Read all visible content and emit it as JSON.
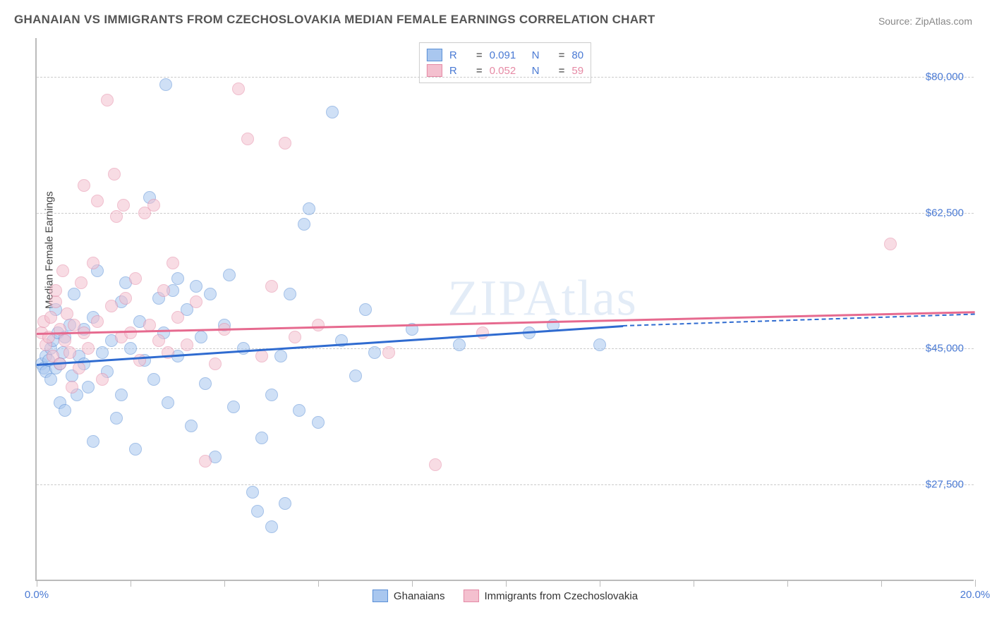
{
  "title": "GHANAIAN VS IMMIGRANTS FROM CZECHOSLOVAKIA MEDIAN FEMALE EARNINGS CORRELATION CHART",
  "source": "Source: ZipAtlas.com",
  "watermark": "ZIPAtlas",
  "chart": {
    "type": "scatter",
    "ylabel": "Median Female Earnings",
    "xlim": [
      0,
      20
    ],
    "ylim": [
      15000,
      85000
    ],
    "xtick_labels": {
      "0": "0.0%",
      "20": "20.0%"
    },
    "xtick_positions": [
      0,
      2,
      4,
      6,
      8,
      10,
      12,
      14,
      16,
      18,
      20
    ],
    "ytick_positions": [
      27500,
      45000,
      62500,
      80000
    ],
    "ytick_labels": {
      "27500": "$27,500",
      "45000": "$45,000",
      "62500": "$62,500",
      "80000": "$80,000"
    },
    "grid_color": "#cccccc",
    "axis_color": "#bbbbbb",
    "background_color": "#ffffff",
    "label_fontsize": 15,
    "title_fontsize": 17,
    "marker_radius": 9,
    "marker_opacity": 0.55,
    "series": [
      {
        "name": "Ghanaians",
        "color_fill": "#a9c7ef",
        "color_stroke": "#5a8fd6",
        "R": "0.091",
        "N": "80",
        "trend": {
          "x1": 0,
          "y1": 43000,
          "x2": 12.5,
          "y2": 48000,
          "x2_dash": 20,
          "y2_dash": 49500,
          "color": "#2f6bd0"
        },
        "points": [
          [
            0.1,
            43000
          ],
          [
            0.15,
            42500
          ],
          [
            0.2,
            44000
          ],
          [
            0.2,
            42000
          ],
          [
            0.25,
            43500
          ],
          [
            0.3,
            41000
          ],
          [
            0.3,
            45000
          ],
          [
            0.35,
            46000
          ],
          [
            0.4,
            42500
          ],
          [
            0.4,
            50000
          ],
          [
            0.45,
            47000
          ],
          [
            0.5,
            43000
          ],
          [
            0.5,
            38000
          ],
          [
            0.55,
            44500
          ],
          [
            0.6,
            37000
          ],
          [
            0.6,
            46500
          ],
          [
            0.7,
            48000
          ],
          [
            0.75,
            41500
          ],
          [
            0.8,
            52000
          ],
          [
            0.85,
            39000
          ],
          [
            0.9,
            44000
          ],
          [
            1.0,
            47500
          ],
          [
            1.0,
            43000
          ],
          [
            1.1,
            40000
          ],
          [
            1.2,
            33000
          ],
          [
            1.2,
            49000
          ],
          [
            1.3,
            55000
          ],
          [
            1.4,
            44500
          ],
          [
            1.5,
            42000
          ],
          [
            1.6,
            46000
          ],
          [
            1.7,
            36000
          ],
          [
            1.8,
            51000
          ],
          [
            1.8,
            39000
          ],
          [
            1.9,
            53500
          ],
          [
            2.0,
            45000
          ],
          [
            2.1,
            32000
          ],
          [
            2.2,
            48500
          ],
          [
            2.3,
            43500
          ],
          [
            2.4,
            64500
          ],
          [
            2.5,
            41000
          ],
          [
            2.6,
            51500
          ],
          [
            2.7,
            47000
          ],
          [
            2.75,
            79000
          ],
          [
            2.8,
            38000
          ],
          [
            2.9,
            52500
          ],
          [
            3.0,
            44000
          ],
          [
            3.0,
            54000
          ],
          [
            3.2,
            50000
          ],
          [
            3.3,
            35000
          ],
          [
            3.4,
            53000
          ],
          [
            3.5,
            46500
          ],
          [
            3.6,
            40500
          ],
          [
            3.7,
            52000
          ],
          [
            3.8,
            31000
          ],
          [
            4.0,
            48000
          ],
          [
            4.1,
            54500
          ],
          [
            4.2,
            37500
          ],
          [
            4.4,
            45000
          ],
          [
            4.6,
            26500
          ],
          [
            4.8,
            33500
          ],
          [
            5.0,
            39000
          ],
          [
            5.0,
            22000
          ],
          [
            5.2,
            44000
          ],
          [
            5.3,
            25000
          ],
          [
            5.4,
            52000
          ],
          [
            5.6,
            37000
          ],
          [
            5.7,
            61000
          ],
          [
            5.8,
            63000
          ],
          [
            6.0,
            35500
          ],
          [
            6.3,
            75500
          ],
          [
            6.5,
            46000
          ],
          [
            6.8,
            41500
          ],
          [
            7.0,
            50000
          ],
          [
            7.2,
            44500
          ],
          [
            8.0,
            47500
          ],
          [
            9.0,
            45500
          ],
          [
            10.5,
            47000
          ],
          [
            11.0,
            48000
          ],
          [
            12.0,
            45500
          ],
          [
            4.7,
            24000
          ]
        ]
      },
      {
        "name": "Immigrants from Czechoslovakia",
        "color_fill": "#f4c0cf",
        "color_stroke": "#e48aa6",
        "R": "0.052",
        "N": "59",
        "trend": {
          "x1": 0,
          "y1": 47000,
          "x2": 20,
          "y2": 49800,
          "color": "#e66a8f"
        },
        "points": [
          [
            0.1,
            47000
          ],
          [
            0.15,
            48500
          ],
          [
            0.2,
            45500
          ],
          [
            0.25,
            46500
          ],
          [
            0.3,
            49000
          ],
          [
            0.35,
            44000
          ],
          [
            0.4,
            51000
          ],
          [
            0.4,
            52500
          ],
          [
            0.5,
            47500
          ],
          [
            0.5,
            43000
          ],
          [
            0.55,
            55000
          ],
          [
            0.6,
            46000
          ],
          [
            0.65,
            49500
          ],
          [
            0.7,
            44500
          ],
          [
            0.75,
            40000
          ],
          [
            0.8,
            48000
          ],
          [
            0.9,
            42500
          ],
          [
            0.95,
            53500
          ],
          [
            1.0,
            47000
          ],
          [
            1.0,
            66000
          ],
          [
            1.1,
            45000
          ],
          [
            1.2,
            56000
          ],
          [
            1.3,
            64000
          ],
          [
            1.3,
            48500
          ],
          [
            1.4,
            41000
          ],
          [
            1.5,
            77000
          ],
          [
            1.6,
            50500
          ],
          [
            1.65,
            67500
          ],
          [
            1.7,
            62000
          ],
          [
            1.8,
            46500
          ],
          [
            1.85,
            63500
          ],
          [
            1.9,
            51500
          ],
          [
            2.0,
            47000
          ],
          [
            2.1,
            54000
          ],
          [
            2.2,
            43500
          ],
          [
            2.3,
            62500
          ],
          [
            2.4,
            48000
          ],
          [
            2.5,
            63500
          ],
          [
            2.6,
            46000
          ],
          [
            2.7,
            52500
          ],
          [
            2.8,
            44500
          ],
          [
            2.9,
            56000
          ],
          [
            3.0,
            49000
          ],
          [
            3.2,
            45500
          ],
          [
            3.4,
            51000
          ],
          [
            3.6,
            30500
          ],
          [
            3.8,
            43000
          ],
          [
            4.0,
            47500
          ],
          [
            4.3,
            78500
          ],
          [
            4.5,
            72000
          ],
          [
            4.8,
            44000
          ],
          [
            5.0,
            53000
          ],
          [
            5.3,
            71500
          ],
          [
            5.5,
            46500
          ],
          [
            6.0,
            48000
          ],
          [
            7.5,
            44500
          ],
          [
            8.5,
            30000
          ],
          [
            9.5,
            47000
          ],
          [
            18.2,
            58500
          ]
        ]
      }
    ]
  },
  "legend_top": {
    "r_label": "R",
    "n_label": "N",
    "eq": "="
  },
  "legend_bottom": {
    "series1": "Ghanaians",
    "series2": "Immigrants from Czechoslovakia"
  }
}
